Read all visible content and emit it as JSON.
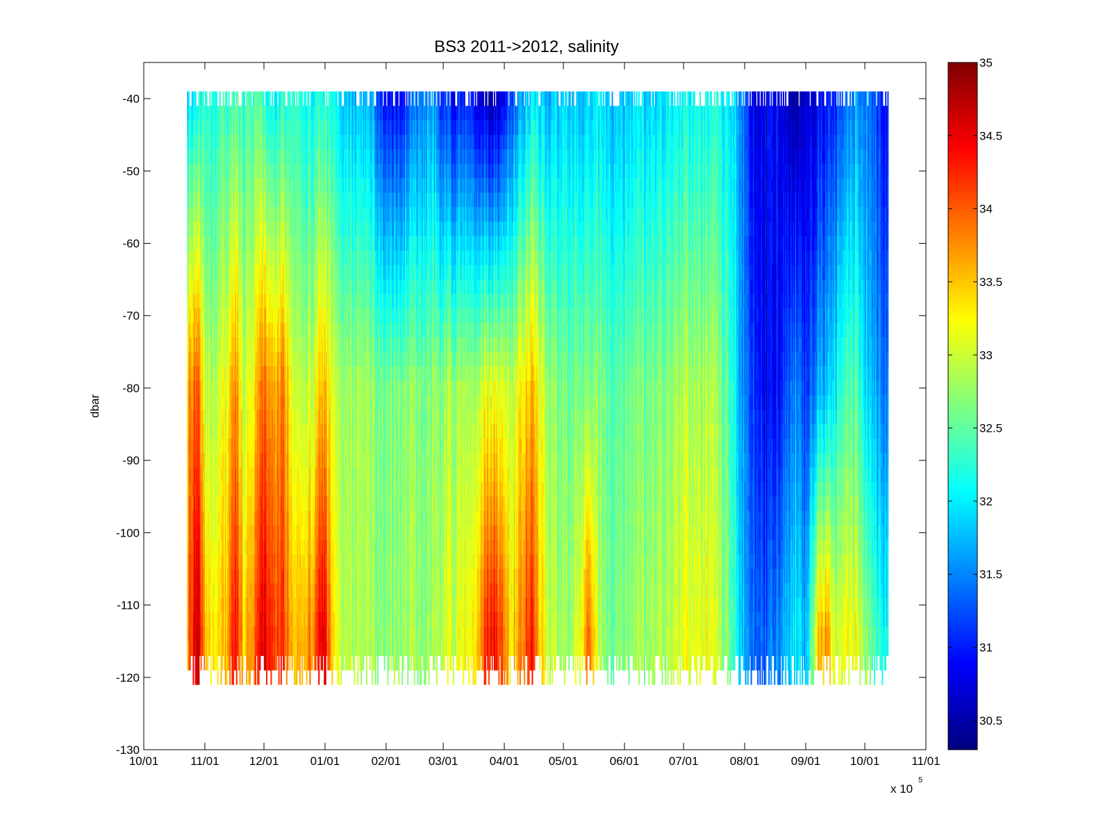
{
  "chart_data": {
    "type": "heatmap",
    "title": "BS3 2011->2012,  salinity",
    "xlabel": "",
    "ylabel": "dbar",
    "x_exponent_label": "x 10",
    "x_exponent": "5",
    "x_ticks": [
      "10/01",
      "11/01",
      "12/01",
      "01/01",
      "02/01",
      "03/01",
      "04/01",
      "05/01",
      "06/01",
      "07/01",
      "08/01",
      "09/01",
      "10/01",
      "11/01"
    ],
    "xlim": [
      "2011-10-01",
      "2012-11-01"
    ],
    "data_x_range": [
      "2011-10-23",
      "2012-10-13"
    ],
    "ylim": [
      -130,
      -35
    ],
    "y_ticks": [
      -40,
      -50,
      -60,
      -70,
      -80,
      -90,
      -100,
      -110,
      -120,
      -130
    ],
    "depth_levels": [
      -40,
      -42,
      -44,
      -46,
      -48,
      -50,
      -52,
      -54,
      -56,
      -58,
      -60,
      -62,
      -64,
      -66,
      -68,
      -70,
      -72,
      -74,
      -76,
      -78,
      -80,
      -82,
      -84,
      -86,
      -88,
      -90,
      -92,
      -94,
      -96,
      -98,
      -100,
      -102,
      -104,
      -106,
      -108,
      -110,
      -112,
      -114,
      -116,
      -118,
      -120
    ],
    "colorbar": {
      "colormap": "jet",
      "clim": [
        30.3,
        35
      ],
      "ticks": [
        30.5,
        31,
        31.5,
        32,
        32.5,
        33,
        33.5,
        34,
        34.5,
        35
      ]
    },
    "profile_dates": [
      "2011-10-23",
      "2011-10-28",
      "2011-11-01",
      "2011-11-06",
      "2011-11-11",
      "2011-11-16",
      "2011-11-21",
      "2011-11-26",
      "2011-12-01",
      "2011-12-06",
      "2011-12-11",
      "2011-12-16",
      "2011-12-21",
      "2011-12-26",
      "2011-12-31",
      "2012-01-05",
      "2012-01-10",
      "2012-01-15",
      "2012-01-20",
      "2012-01-25",
      "2012-01-30",
      "2012-02-04",
      "2012-02-09",
      "2012-02-14",
      "2012-02-19",
      "2012-02-24",
      "2012-02-29",
      "2012-03-05",
      "2012-03-10",
      "2012-03-15",
      "2012-03-20",
      "2012-03-25",
      "2012-03-30",
      "2012-04-04",
      "2012-04-09",
      "2012-04-14",
      "2012-04-19",
      "2012-04-24",
      "2012-04-29",
      "2012-05-04",
      "2012-05-09",
      "2012-05-14",
      "2012-05-19",
      "2012-05-24",
      "2012-05-29",
      "2012-06-03",
      "2012-06-08",
      "2012-06-13",
      "2012-06-18",
      "2012-06-23",
      "2012-06-28",
      "2012-07-03",
      "2012-07-08",
      "2012-07-13",
      "2012-07-18",
      "2012-07-23",
      "2012-07-28",
      "2012-08-02",
      "2012-08-07",
      "2012-08-12",
      "2012-08-17",
      "2012-08-22",
      "2012-08-27",
      "2012-09-01",
      "2012-09-06",
      "2012-09-11",
      "2012-09-16",
      "2012-09-21",
      "2012-09-26",
      "2012-10-01",
      "2012-10-06",
      "2012-10-11"
    ],
    "salinity_at_40dbar": [
      31.9,
      32.0,
      32.3,
      32.2,
      32.3,
      32.4,
      32.3,
      32.4,
      32.3,
      32.1,
      32.2,
      32.2,
      32.1,
      32.2,
      32.2,
      32.1,
      31.9,
      31.8,
      31.7,
      31.6,
      31.1,
      30.9,
      31.0,
      31.3,
      31.5,
      31.6,
      31.1,
      30.9,
      31.0,
      31.1,
      30.7,
      30.6,
      30.7,
      31.2,
      31.6,
      31.9,
      31.8,
      31.8,
      31.9,
      31.9,
      31.8,
      31.8,
      31.9,
      31.8,
      31.8,
      31.8,
      31.9,
      31.9,
      31.9,
      32.0,
      32.0,
      32.0,
      32.1,
      32.1,
      32.1,
      31.9,
      31.8,
      31.1,
      30.7,
      30.8,
      30.9,
      30.7,
      30.5,
      30.6,
      30.8,
      31.0,
      31.1,
      31.5,
      31.6,
      31.5,
      31.3,
      30.9
    ],
    "salinity_at_80dbar": [
      33.6,
      34.0,
      33.0,
      32.9,
      33.1,
      33.8,
      32.9,
      33.3,
      34.0,
      33.7,
      33.8,
      32.9,
      32.9,
      33.1,
      33.6,
      33.0,
      32.9,
      32.8,
      32.8,
      32.7,
      32.7,
      32.6,
      32.7,
      32.7,
      32.6,
      32.7,
      32.7,
      32.8,
      32.8,
      32.9,
      33.0,
      33.2,
      33.1,
      32.9,
      33.3,
      33.5,
      33.1,
      32.8,
      32.7,
      32.6,
      32.7,
      32.6,
      32.6,
      32.5,
      32.5,
      32.6,
      32.6,
      32.6,
      32.7,
      32.7,
      32.8,
      32.8,
      32.8,
      32.9,
      32.7,
      32.4,
      31.9,
      31.3,
      31.0,
      30.8,
      30.9,
      31.3,
      31.6,
      31.0,
      31.6,
      31.8,
      32.1,
      32.5,
      32.5,
      32.0,
      31.7,
      31.4
    ],
    "salinity_at_114dbar": [
      33.8,
      34.7,
      33.6,
      33.3,
      33.5,
      34.4,
      33.4,
      33.9,
      34.6,
      34.2,
      34.1,
      33.4,
      33.6,
      33.9,
      34.6,
      33.3,
      33.0,
      32.9,
      32.8,
      32.8,
      32.8,
      32.7,
      32.8,
      32.8,
      32.7,
      32.8,
      32.9,
      33.0,
      33.1,
      33.3,
      33.8,
      34.5,
      34.1,
      33.3,
      33.8,
      34.3,
      33.4,
      33.0,
      32.9,
      32.8,
      33.2,
      33.9,
      32.8,
      32.6,
      32.7,
      32.7,
      32.8,
      32.8,
      32.9,
      32.9,
      33.0,
      33.1,
      33.1,
      33.2,
      32.9,
      32.6,
      32.1,
      31.5,
      31.3,
      31.3,
      31.5,
      31.8,
      32.1,
      31.6,
      33.3,
      33.8,
      33.0,
      33.3,
      33.2,
      32.8,
      32.4,
      32.1
    ]
  }
}
